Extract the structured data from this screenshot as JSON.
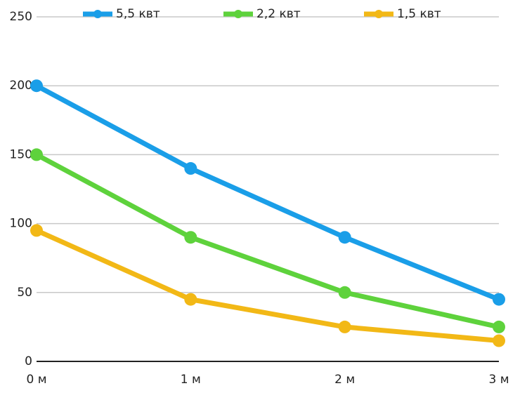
{
  "chart_data": {
    "type": "line",
    "categories": [
      "0 м",
      "1 м",
      "2 м",
      "3 м"
    ],
    "series": [
      {
        "name": "5,5 квт",
        "color": "#1a9ee8",
        "values": [
          200,
          140,
          90,
          45
        ]
      },
      {
        "name": "2,2 квт",
        "color": "#5ed23c",
        "values": [
          150,
          90,
          50,
          25
        ]
      },
      {
        "name": "1,5 квт",
        "color": "#f2b816",
        "values": [
          95,
          45,
          25,
          15
        ]
      }
    ],
    "ylim": [
      0,
      250
    ],
    "yticks": [
      0,
      50,
      100,
      150,
      200,
      250
    ],
    "grid": true,
    "legend": "top"
  }
}
